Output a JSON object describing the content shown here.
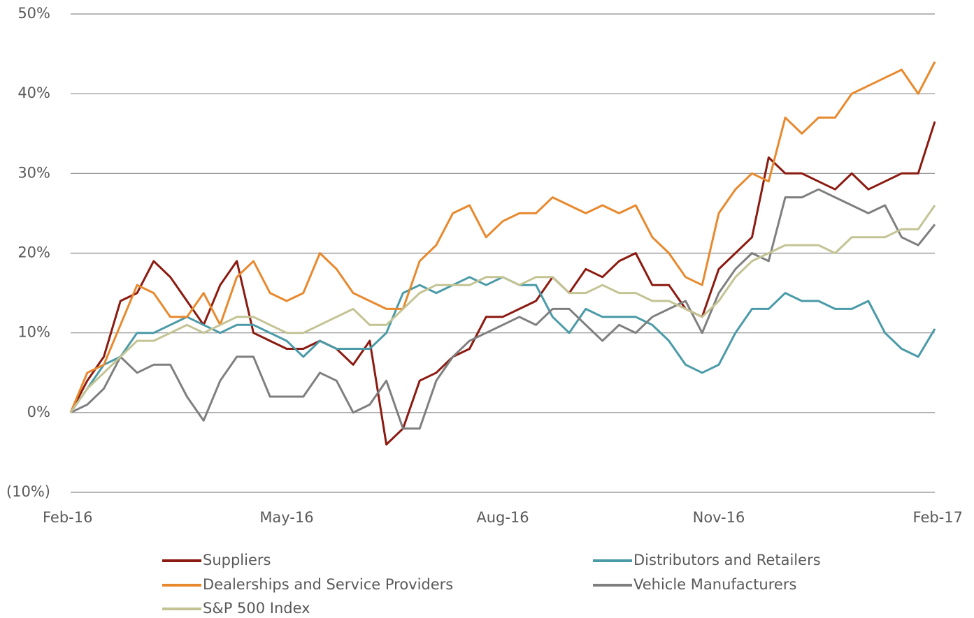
{
  "chart_data": {
    "type": "line",
    "categories": [
      "Feb-16",
      null,
      null,
      null,
      null,
      null,
      null,
      null,
      null,
      null,
      null,
      null,
      null,
      "May-16",
      null,
      null,
      null,
      null,
      null,
      null,
      null,
      null,
      null,
      null,
      null,
      null,
      "Aug-16",
      null,
      null,
      null,
      null,
      null,
      null,
      null,
      null,
      null,
      null,
      null,
      null,
      "Nov-16",
      null,
      null,
      null,
      null,
      null,
      null,
      null,
      null,
      null,
      null,
      null,
      null,
      "Feb-17"
    ],
    "ylim": [
      -10,
      50
    ],
    "yticks": [
      {
        "value": -10,
        "label": "(10%)"
      },
      {
        "value": 0,
        "label": "0%"
      },
      {
        "value": 10,
        "label": "10%"
      },
      {
        "value": 20,
        "label": "20%"
      },
      {
        "value": 30,
        "label": "30%"
      },
      {
        "value": 40,
        "label": "40%"
      },
      {
        "value": 50,
        "label": "50%"
      }
    ],
    "grid": true,
    "legend": "bottom",
    "series": [
      {
        "name": "Suppliers",
        "color": "#8b1a10",
        "values": [
          0,
          4,
          7,
          14,
          15,
          19,
          17,
          14,
          11,
          16,
          19,
          10,
          9,
          8,
          8,
          9,
          8,
          6,
          9,
          -4,
          -2,
          4,
          5,
          7,
          8,
          12,
          12,
          13,
          14,
          17,
          15,
          18,
          17,
          19,
          20,
          16,
          16,
          13,
          12,
          18,
          20,
          22,
          32,
          30,
          30,
          29,
          28,
          30,
          28,
          29,
          30,
          30,
          36.5
        ]
      },
      {
        "name": "Distributors and Retailers",
        "color": "#4a9aa8",
        "values": [
          0,
          3,
          6,
          7,
          10,
          10,
          11,
          12,
          11,
          10,
          11,
          11,
          10,
          9,
          7,
          9,
          8,
          8,
          8,
          10,
          15,
          16,
          15,
          16,
          17,
          16,
          17,
          16,
          16,
          12,
          10,
          13,
          12,
          12,
          12,
          11,
          9,
          6,
          5,
          6,
          10,
          13,
          13,
          15,
          14,
          14,
          13,
          13,
          14,
          10,
          8,
          7,
          10.5
        ]
      },
      {
        "name": "Dealerships and Service Providers",
        "color": "#e8892e",
        "values": [
          0,
          5,
          6,
          11,
          16,
          15,
          12,
          12,
          15,
          11,
          17,
          19,
          15,
          14,
          15,
          20,
          18,
          15,
          14,
          13,
          13,
          19,
          21,
          25,
          26,
          22,
          24,
          25,
          25,
          27,
          26,
          25,
          26,
          25,
          26,
          22,
          20,
          17,
          16,
          25,
          28,
          30,
          29,
          37,
          35,
          37,
          37,
          40,
          41,
          42,
          43,
          40,
          44
        ]
      },
      {
        "name": "Vehicle Manufacturers",
        "color": "#7f7f7f",
        "values": [
          0,
          1,
          3,
          7,
          5,
          6,
          6,
          2,
          -1,
          4,
          7,
          7,
          2,
          2,
          2,
          5,
          4,
          0,
          1,
          4,
          -2,
          -2,
          4,
          7,
          9,
          10,
          11,
          12,
          11,
          13,
          13,
          11,
          9,
          11,
          10,
          12,
          13,
          14,
          10,
          15,
          18,
          20,
          19,
          27,
          27,
          28,
          27,
          26,
          25,
          26,
          22,
          21,
          23.6
        ]
      },
      {
        "name": "S&P 500 Index",
        "color": "#c3c394",
        "values": [
          0,
          3,
          5,
          7,
          9,
          9,
          10,
          11,
          10,
          11,
          12,
          12,
          11,
          10,
          10,
          11,
          12,
          13,
          11,
          11,
          13,
          15,
          16,
          16,
          16,
          17,
          17,
          16,
          17,
          17,
          15,
          15,
          16,
          15,
          15,
          14,
          14,
          13,
          12,
          14,
          17,
          19,
          20,
          21,
          21,
          21,
          20,
          22,
          22,
          22,
          23,
          23,
          26
        ]
      }
    ]
  }
}
